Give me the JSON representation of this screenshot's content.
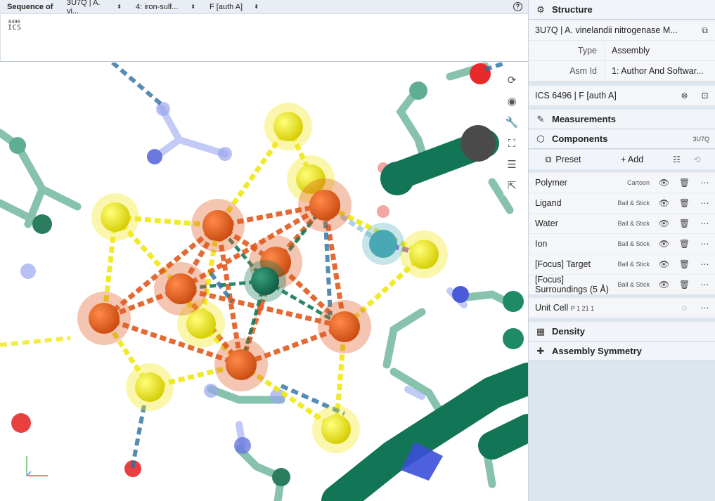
{
  "sequence": {
    "label": "Sequence of",
    "selectors": [
      {
        "value": "3U7Q | A. vi...",
        "width": 98
      },
      {
        "value": "4: iron-sulf...",
        "width": 105
      },
      {
        "value": "F [auth A]",
        "width": 90
      }
    ],
    "residue_number": "6496",
    "residue_code": "ICS"
  },
  "viewport_tools": [
    "reset-icon",
    "spin-icon",
    "wrench-icon",
    "expand-icon",
    "sliders-icon",
    "pointer-icon"
  ],
  "structure": {
    "title": "Structure",
    "entry": "3U7Q | A. vinelandii nitrogenase M...",
    "type_label": "Type",
    "type_value": "Assembly",
    "asm_label": "Asm Id",
    "asm_value": "1: Author And Softwar..."
  },
  "focus": {
    "label": "ICS 6496 | F [auth A]"
  },
  "measurements": {
    "title": "Measurements"
  },
  "components": {
    "title": "Components",
    "badge": "3U7Q",
    "preset_label": "Preset",
    "add_label": "+ Add",
    "items": [
      {
        "name": "Polymer",
        "rep": "Cartoon"
      },
      {
        "name": "Ligand",
        "rep": "Ball & Stick"
      },
      {
        "name": "Water",
        "rep": "Ball & Stick"
      },
      {
        "name": "Ion",
        "rep": "Ball & Stick"
      },
      {
        "name": "[Focus] Target",
        "rep": "Ball & Stick"
      },
      {
        "name": "[Focus] Surroundings (5 Å)",
        "rep": "Ball & Stick"
      }
    ],
    "unit_cell_label": "Unit Cell",
    "unit_cell_group": "P 1 21 1"
  },
  "density": {
    "title": "Density"
  },
  "assembly_symmetry": {
    "title": "Assembly Symmetry"
  },
  "colors": {
    "iron": "#e05a1e",
    "sulfur": "#f0e814",
    "carbon_center": "#147a5a",
    "protein_green": "#1f8a66",
    "nitrogen": "#6a78e0",
    "oxygen": "#e84040",
    "panel_bg": "#dde6ee"
  }
}
